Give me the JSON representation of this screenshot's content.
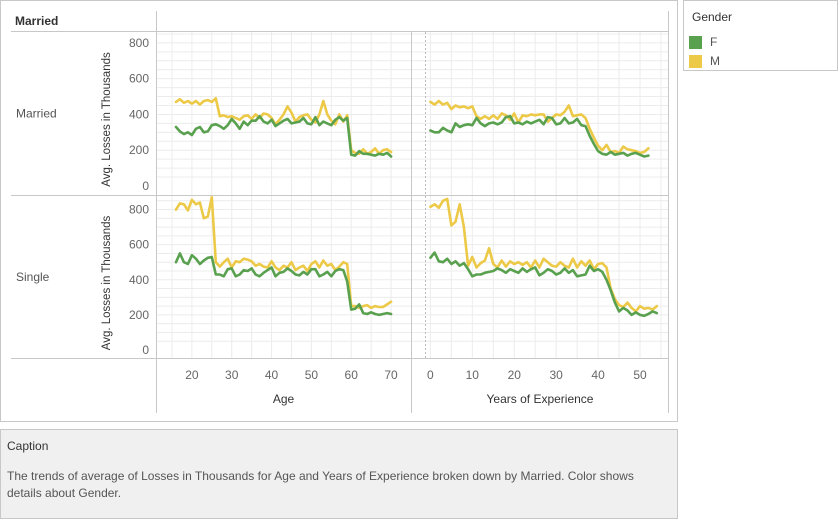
{
  "header": {
    "row_field": "Married"
  },
  "legend": {
    "title": "Gender",
    "items": [
      {
        "label": "F",
        "color": "#59a14f"
      },
      {
        "label": "M",
        "color": "#edc948"
      }
    ]
  },
  "caption": {
    "title": "Caption",
    "text": "The trends of average of Losses in Thousands for Age and Years of Experience broken down by Married.  Color shows details about Gender."
  },
  "chart_data": {
    "type": "line",
    "ylabel": "Avg. Losses in Thousands",
    "yticks": [
      0,
      200,
      400,
      600,
      800
    ],
    "rows": [
      "Married",
      "Single"
    ],
    "columns": [
      {
        "xlabel": "Age",
        "xlim": [
          14,
          73
        ],
        "xticks": [
          20,
          30,
          40,
          50,
          60,
          70
        ]
      },
      {
        "xlabel": "Years of Experience",
        "xlim": [
          -2,
          55
        ],
        "xticks": [
          0,
          10,
          20,
          30,
          40,
          50
        ]
      }
    ],
    "panels": [
      {
        "row": "Married",
        "column": "Age",
        "x_start": 16,
        "series": [
          {
            "name": "F",
            "values": [
              330,
              305,
              290,
              300,
              285,
              320,
              330,
              300,
              305,
              340,
              345,
              335,
              320,
              340,
              375,
              350,
              320,
              360,
              340,
              365,
              365,
              390,
              360,
              350,
              370,
              335,
              350,
              365,
              375,
              350,
              355,
              360,
              380,
              350,
              345,
              385,
              340,
              360,
              350,
              340,
              370,
              385,
              365,
              380,
              175,
              170,
              195,
              180,
              180,
              175,
              170,
              180,
              175,
              185,
              165
            ]
          },
          {
            "name": "M",
            "values": [
              470,
              485,
              465,
              475,
              460,
              475,
              455,
              475,
              480,
              470,
              490,
              390,
              395,
              385,
              390,
              380,
              370,
              390,
              395,
              375,
              400,
              380,
              405,
              400,
              380,
              345,
              370,
              400,
              445,
              410,
              360,
              385,
              395,
              400,
              370,
              355,
              400,
              475,
              400,
              365,
              345,
              400,
              360,
              395,
              200,
              185,
              180,
              205,
              180,
              190,
              210,
              180,
              200,
              205,
              190
            ]
          }
        ]
      },
      {
        "row": "Married",
        "column": "Years of Experience",
        "x_start": 0,
        "series": [
          {
            "name": "F",
            "values": [
              310,
              300,
              300,
              325,
              310,
              300,
              350,
              330,
              340,
              345,
              340,
              380,
              350,
              335,
              350,
              355,
              345,
              355,
              385,
              390,
              350,
              355,
              345,
              360,
              350,
              360,
              370,
              345,
              385,
              380,
              345,
              350,
              380,
              350,
              355,
              375,
              340,
              335,
              280,
              235,
              195,
              180,
              175,
              190,
              175,
              180,
              185,
              170,
              180,
              185,
              175,
              165,
              170
            ]
          },
          {
            "name": "M",
            "values": [
              470,
              455,
              475,
              455,
              465,
              430,
              450,
              440,
              445,
              435,
              445,
              390,
              375,
              390,
              375,
              395,
              375,
              405,
              395,
              370,
              405,
              355,
              395,
              390,
              400,
              395,
              400,
              400,
              360,
              380,
              400,
              395,
              415,
              450,
              390,
              395,
              400,
              380,
              320,
              270,
              225,
              200,
              230,
              190,
              195,
              185,
              220,
              205,
              200,
              195,
              185,
              190,
              210
            ]
          }
        ]
      },
      {
        "row": "Single",
        "column": "Age",
        "x_start": 16,
        "series": [
          {
            "name": "F",
            "values": [
              500,
              550,
              500,
              490,
              540,
              520,
              490,
              510,
              525,
              530,
              430,
              430,
              420,
              460,
              465,
              420,
              430,
              455,
              450,
              465,
              430,
              420,
              440,
              455,
              470,
              420,
              440,
              445,
              465,
              450,
              430,
              425,
              445,
              430,
              460,
              460,
              420,
              430,
              445,
              420,
              450,
              460,
              455,
              390,
              230,
              235,
              260,
              210,
              205,
              215,
              205,
              200,
              205,
              210,
              205
            ]
          },
          {
            "name": "M",
            "values": [
              800,
              835,
              830,
              795,
              855,
              830,
              840,
              750,
              760,
              870,
              500,
              475,
              500,
              520,
              470,
              505,
              500,
              520,
              515,
              505,
              480,
              490,
              475,
              470,
              505,
              470,
              455,
              480,
              470,
              500,
              455,
              470,
              480,
              450,
              490,
              505,
              470,
              510,
              480,
              490,
              455,
              475,
              500,
              490,
              250,
              250,
              240,
              250,
              255,
              240,
              250,
              245,
              245,
              260,
              275
            ]
          }
        ]
      },
      {
        "row": "Single",
        "column": "Years of Experience",
        "x_start": 0,
        "series": [
          {
            "name": "F",
            "values": [
              525,
              555,
              505,
              500,
              520,
              490,
              505,
              480,
              495,
              460,
              420,
              430,
              430,
              440,
              445,
              450,
              465,
              455,
              440,
              460,
              450,
              440,
              465,
              445,
              460,
              470,
              425,
              440,
              460,
              450,
              430,
              440,
              465,
              440,
              455,
              420,
              425,
              430,
              480,
              450,
              460,
              445,
              400,
              340,
              270,
              220,
              240,
              225,
              200,
              215,
              200,
              195,
              205,
              220,
              210
            ]
          },
          {
            "name": "M",
            "values": [
              815,
              830,
              810,
              850,
              860,
              710,
              730,
              830,
              700,
              480,
              530,
              470,
              495,
              510,
              580,
              490,
              470,
              510,
              475,
              505,
              490,
              500,
              485,
              500,
              470,
              510,
              470,
              520,
              500,
              480,
              475,
              500,
              480,
              470,
              520,
              470,
              505,
              480,
              510,
              460,
              490,
              495,
              470,
              350,
              290,
              255,
              245,
              270,
              240,
              220,
              250,
              235,
              240,
              230,
              250
            ]
          }
        ]
      }
    ]
  }
}
